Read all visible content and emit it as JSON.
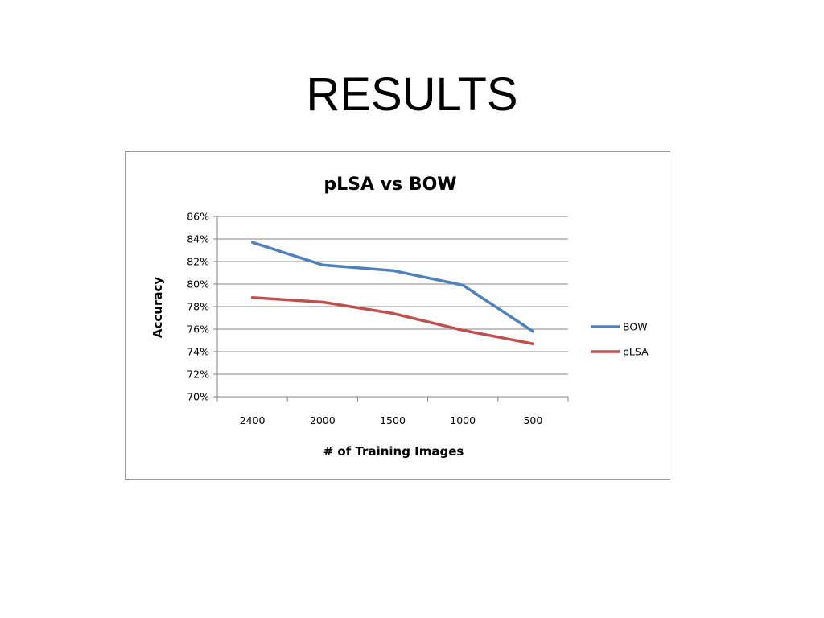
{
  "slide": {
    "title": "RESULTS"
  },
  "chart_data": {
    "type": "line",
    "title": "pLSA vs BOW",
    "xlabel": "# of Training Images",
    "ylabel": "Accuracy",
    "categories": [
      "2400",
      "2000",
      "1500",
      "1000",
      "500"
    ],
    "y_ticks": [
      "70%",
      "72%",
      "74%",
      "76%",
      "78%",
      "80%",
      "82%",
      "84%",
      "86%"
    ],
    "ylim": [
      70,
      86
    ],
    "grid": "horizontal",
    "legend_position": "right",
    "series": [
      {
        "name": "BOW",
        "color": "#4F81BD",
        "values": [
          83.7,
          81.7,
          81.2,
          79.9,
          75.8
        ]
      },
      {
        "name": "pLSA",
        "color": "#C0504D",
        "values": [
          78.8,
          78.4,
          77.4,
          75.9,
          74.7
        ]
      }
    ]
  }
}
